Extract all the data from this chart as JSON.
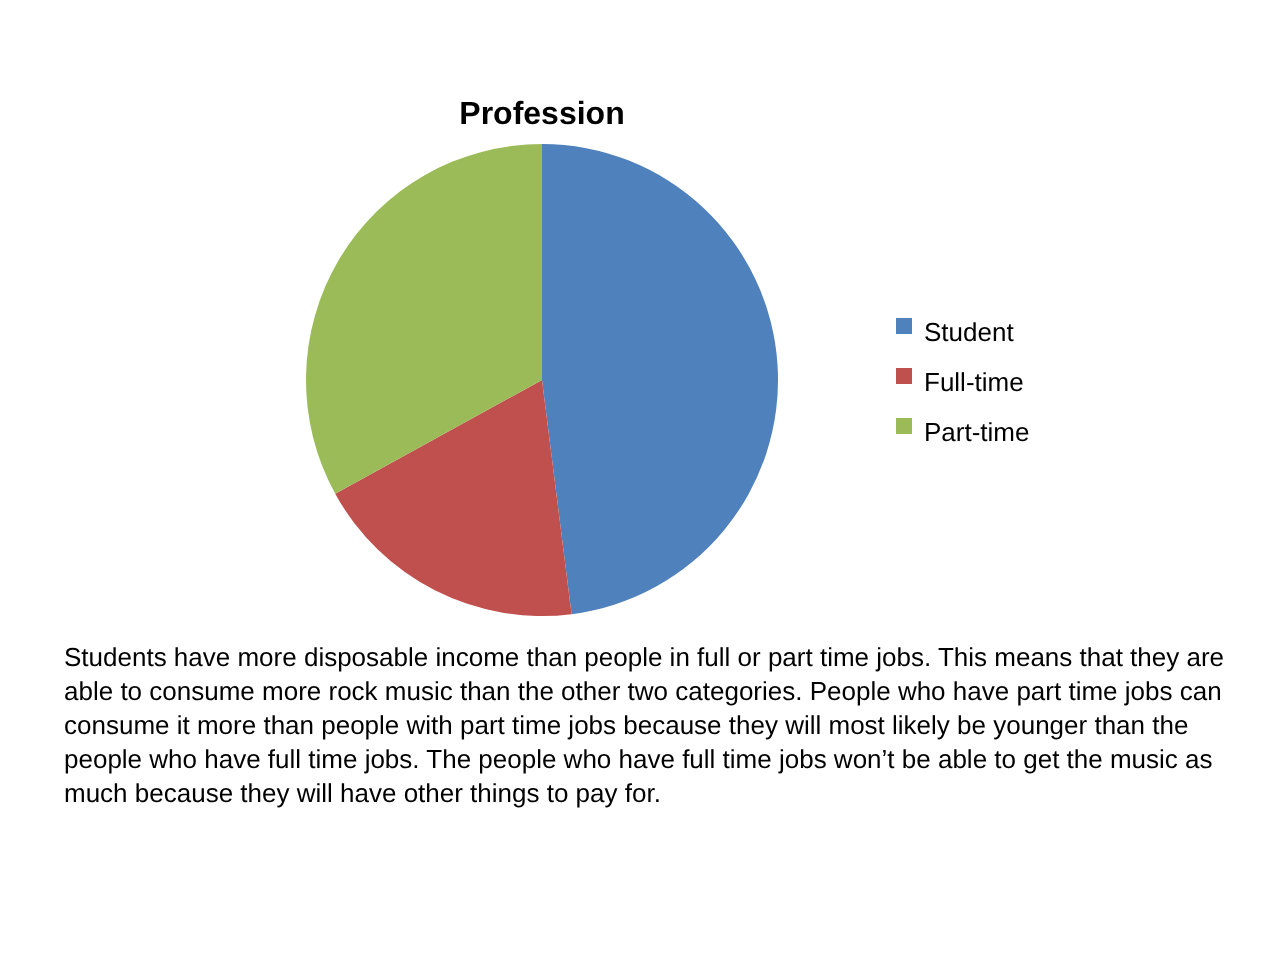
{
  "chart_data": {
    "type": "pie",
    "title": "Profession",
    "categories": [
      "Student",
      "Full-time",
      "Part-time"
    ],
    "values": [
      48,
      19,
      33
    ],
    "colors": [
      "#4f81bd",
      "#c0504d",
      "#9bbb59"
    ],
    "legend": "right",
    "annotations": [
      "Students have more disposable income than people in full or part time jobs. This means that they are able to consume more rock music than the other two categories. People who have part time jobs can consume it more than people with part time jobs because they will most likely be younger than the people who have full time jobs. The people who have full time jobs won’t be able to get the music as much because they will have other things to pay for."
    ]
  }
}
